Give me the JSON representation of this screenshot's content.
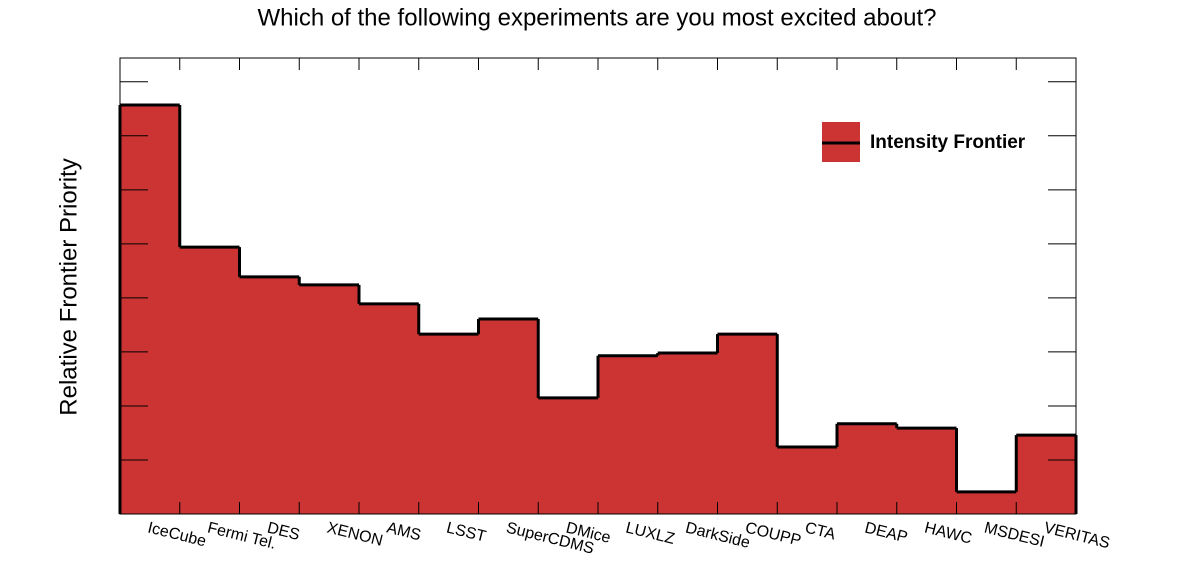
{
  "chart_data": {
    "type": "histogram",
    "title": "Which of the following experiments are you most excited about?",
    "y_label": "Relative Frontier Priority",
    "categories": [
      "IceCube",
      "Fermi Tel.",
      "DES",
      "XENON",
      "AMS",
      "LSST",
      "SuperCDMS",
      "DMice",
      "LUXLZ",
      "DarkSide",
      "COUPP",
      "CTA",
      "DEAP",
      "HAWC",
      "MSDESI",
      "VERITAS"
    ],
    "series": [
      {
        "name": "Intensity Frontier",
        "color": "#cc3333",
        "values": [
          7.57,
          4.94,
          4.39,
          4.24,
          3.89,
          3.33,
          3.61,
          2.15,
          2.93,
          2.98,
          3.33,
          1.24,
          1.67,
          1.59,
          0.41,
          1.46
        ]
      }
    ],
    "ylim": [
      0,
      8.44
    ],
    "yticks": [
      0,
      1,
      2,
      3,
      4,
      5,
      6,
      7,
      8
    ],
    "legend": "top-right"
  }
}
